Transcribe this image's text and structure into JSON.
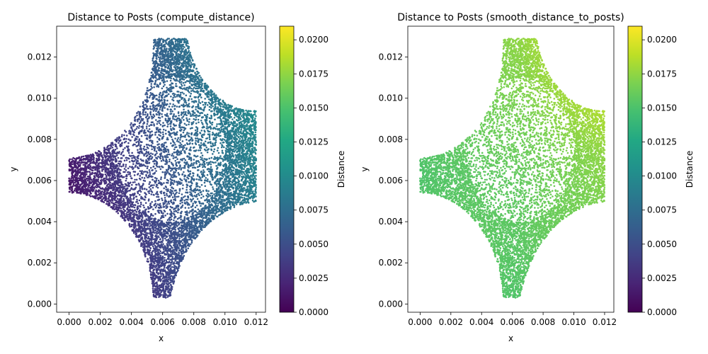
{
  "chart_data": [
    {
      "type": "scatter",
      "title": "Distance to Posts (compute_distance)",
      "xlabel": "x",
      "ylabel": "y",
      "xlim": [
        -0.0008,
        0.0126
      ],
      "ylim": [
        -0.0004,
        0.0135
      ],
      "xticks": [
        "0.000",
        "0.002",
        "0.004",
        "0.006",
        "0.008",
        "0.010",
        "0.012"
      ],
      "yticks": [
        "0.000",
        "0.002",
        "0.004",
        "0.006",
        "0.008",
        "0.010",
        "0.012"
      ],
      "colormap": "viridis",
      "color_field": "compute_distance",
      "colorbar": {
        "label": "Distance",
        "range": [
          0.0,
          0.021
        ],
        "ticks": [
          "0.0000",
          "0.0025",
          "0.0050",
          "0.0075",
          "0.0100",
          "0.0125",
          "0.0150",
          "0.0175",
          "0.0200"
        ]
      },
      "domain": {
        "x_range": [
          0.0,
          0.012
        ],
        "y_range": [
          0.0003,
          0.0129
        ],
        "post_centers": [
          [
            0.0,
            0.0
          ],
          [
            0.0,
            0.0125
          ],
          [
            0.012,
            0.0
          ],
          [
            0.012,
            0.0135
          ]
        ]
      },
      "grid": false
    },
    {
      "type": "scatter",
      "title": "Distance to Posts (smooth_distance_to_posts)",
      "xlabel": "x",
      "ylabel": "y",
      "xlim": [
        -0.0008,
        0.0126
      ],
      "ylim": [
        -0.0004,
        0.0135
      ],
      "xticks": [
        "0.000",
        "0.002",
        "0.004",
        "0.006",
        "0.008",
        "0.010",
        "0.012"
      ],
      "yticks": [
        "0.000",
        "0.002",
        "0.004",
        "0.006",
        "0.008",
        "0.010",
        "0.012"
      ],
      "colormap": "viridis",
      "color_field": "smooth_distance_to_posts",
      "colorbar": {
        "label": "Distance",
        "range": [
          0.0,
          0.021
        ],
        "ticks": [
          "0.0000",
          "0.0025",
          "0.0050",
          "0.0075",
          "0.0100",
          "0.0125",
          "0.0150",
          "0.0175",
          "0.0200"
        ]
      },
      "grid": false
    }
  ]
}
